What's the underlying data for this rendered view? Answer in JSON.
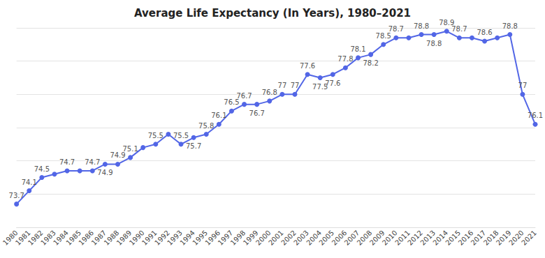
{
  "chart_data": {
    "type": "line",
    "title": "Average Life Expectancy (In Years), 1980–2021",
    "categories": [
      "1980",
      "1981",
      "1982",
      "1983",
      "1984",
      "1985",
      "1986",
      "1987",
      "1988",
      "1989",
      "1990",
      "1991",
      "1992",
      "1993",
      "1994",
      "1995",
      "1996",
      "1997",
      "1998",
      "1999",
      "2000",
      "2001",
      "2002",
      "2003",
      "2004",
      "2005",
      "2006",
      "2007",
      "2008",
      "2009",
      "2010",
      "2011",
      "2012",
      "2013",
      "2014",
      "2015",
      "2016",
      "2017",
      "2018",
      "2019",
      "2020",
      "2021"
    ],
    "values": [
      73.7,
      74.1,
      74.5,
      74.6,
      74.7,
      74.7,
      74.7,
      74.9,
      74.9,
      75.1,
      75.4,
      75.5,
      75.8,
      75.5,
      75.7,
      75.8,
      76.1,
      76.5,
      76.7,
      76.7,
      76.8,
      77,
      77,
      77.6,
      77.5,
      77.6,
      77.8,
      78.1,
      78.2,
      78.5,
      78.7,
      78.7,
      78.8,
      78.8,
      78.9,
      78.7,
      78.7,
      78.6,
      78.7,
      78.8,
      77,
      76.1
    ],
    "value_labels": [
      "73.7",
      "74.1",
      "74.5",
      null,
      "74.7",
      null,
      "74.7",
      "74.9",
      "74.9",
      "75.1",
      null,
      "75.5",
      null,
      "75.5",
      "75.7",
      "75.8",
      "76.1",
      "76.5",
      "76.7",
      "76.7",
      "76.8",
      "77",
      "77",
      "77.6",
      "77.5",
      "77.6",
      "77.8",
      "78.1",
      "78.2",
      "78.5",
      "78.7",
      null,
      "78.8",
      "78.8",
      "78.9",
      "78.7",
      null,
      "78.6",
      null,
      "78.8",
      "77",
      "76.1"
    ],
    "color": "#5266e6",
    "marker": "circle",
    "line_style": "solid",
    "data_labels": true,
    "ylim": [
      73,
      79
    ],
    "yticks": [
      73,
      74,
      75,
      76,
      77,
      78,
      79
    ],
    "grid": true,
    "tick_labels": "x"
  }
}
